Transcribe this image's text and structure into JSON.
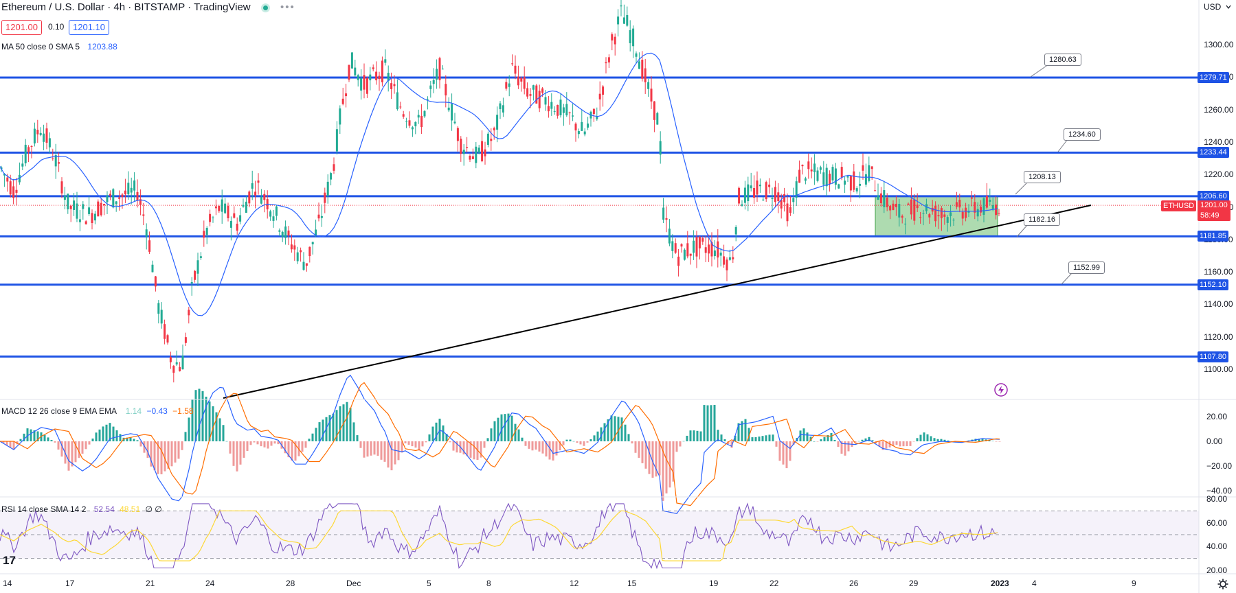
{
  "header": {
    "title": "Ethereum / U.S. Dollar · 4h · BITSTAMP · TradingView",
    "bid": "1201.00",
    "spread": "0.10",
    "ask": "1201.10",
    "ma_label": "MA 50 close 0 SMA 5",
    "ma_value": "1203.88",
    "currency": "USD",
    "more_glyph": "•••"
  },
  "price_axis": {
    "ticks": [
      "1300.00",
      "1280.00",
      "1260.00",
      "1240.00",
      "1220.00",
      "1200.00",
      "1180.00",
      "1160.00",
      "1140.00",
      "1120.00",
      "1100.00"
    ],
    "level_tags": [
      "1279.71",
      "1233.44",
      "1206.60",
      "1181.85",
      "1152.10",
      "1107.80"
    ],
    "symbol_tag": "ETHUSD",
    "last_price": "1201.00",
    "countdown": "58:49"
  },
  "callouts": [
    "1280.63",
    "1234.60",
    "1208.13",
    "1182.16",
    "1152.99"
  ],
  "macd": {
    "label": "MACD 12 26 close 9 EMA EMA",
    "v1": "1.14",
    "v2": "−0.43",
    "v3": "−1.58",
    "ticks": [
      "20.00",
      "0.00",
      "−20.00",
      "−40.00"
    ]
  },
  "rsi": {
    "label": "RSI 14 close SMA 14 2",
    "v1": "52.54",
    "v2": "48.51",
    "v3": "∅ ∅",
    "ticks": [
      "80.00",
      "60.00",
      "40.00",
      "20.00"
    ]
  },
  "time_axis": [
    "14",
    "17",
    "21",
    "24",
    "28",
    "Dec",
    "5",
    "8",
    "12",
    "15",
    "19",
    "22",
    "26",
    "29",
    "2023",
    "4",
    "9"
  ],
  "brand": "17",
  "colors": {
    "up": "#22ab94",
    "down": "#f23645",
    "level": "#1e53e5",
    "ma": "#2962ff",
    "macd": "#2962ff",
    "signal": "#ff6d00",
    "rsi": "#7e57c2",
    "rsi_sma": "#fdd835",
    "zone": "#4caf50"
  },
  "icons": {
    "settings": "gear-icon",
    "alert": "lightning-icon",
    "chevron": "chevron-down-icon"
  }
}
